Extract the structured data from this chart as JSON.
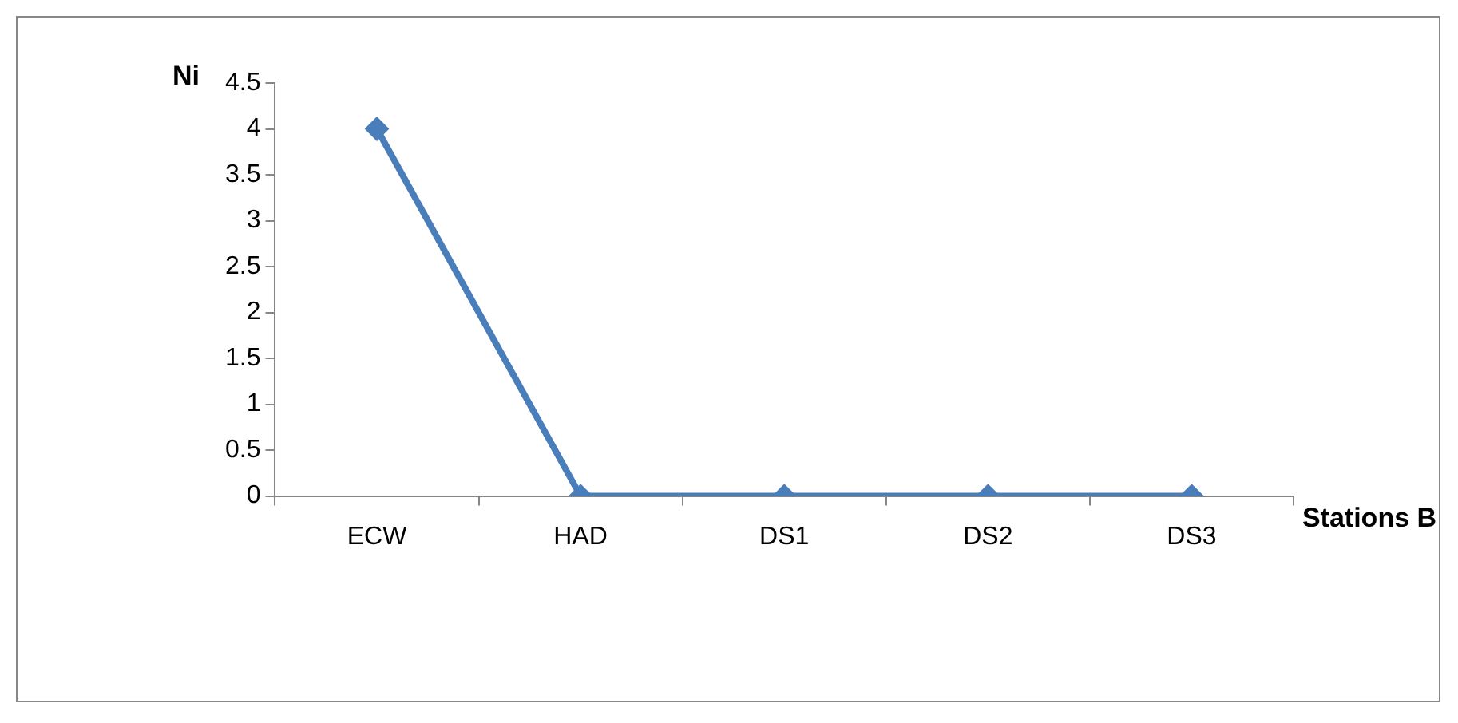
{
  "chart_data": {
    "type": "line",
    "xlabel": "Stations B",
    "ylabel": "Ni",
    "categories": [
      "ECW",
      "HAD",
      "DS1",
      "DS2",
      "DS3"
    ],
    "series": [
      {
        "color": "#4a7ebb",
        "values": [
          4,
          0,
          0,
          0,
          0
        ]
      }
    ],
    "ylim": [
      0,
      4.5
    ],
    "yticks": [
      0,
      0.5,
      1,
      1.5,
      2,
      2.5,
      3,
      3.5,
      4,
      4.5
    ],
    "grid": false,
    "legend": false,
    "marker": "diamond",
    "line_style": "solid"
  }
}
